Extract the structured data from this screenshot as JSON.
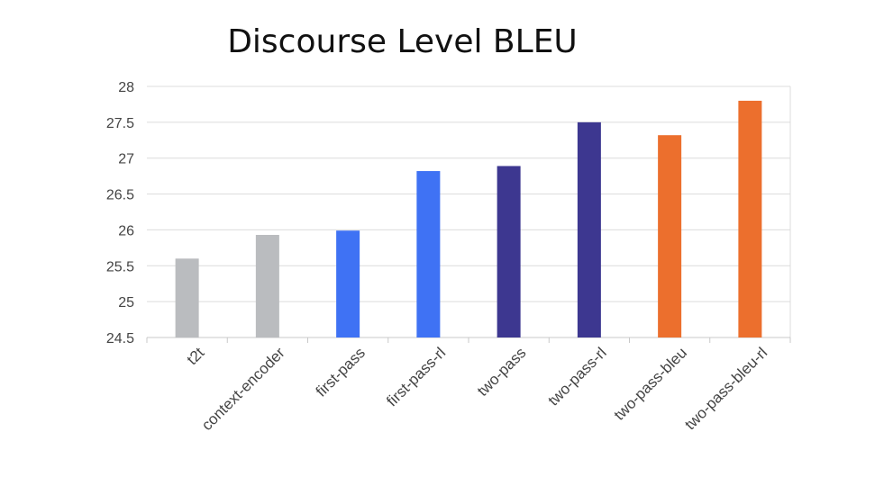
{
  "chart_data": {
    "type": "bar",
    "title": "Discourse Level BLEU",
    "xlabel": "",
    "ylabel": "",
    "categories": [
      "t2t",
      "context-encoder",
      "first-pass",
      "first-pass-rl",
      "two-pass",
      "two-pass-rl",
      "two-pass-bleu",
      "two-pass-bleu-rl"
    ],
    "values": [
      25.6,
      25.93,
      25.99,
      26.82,
      26.89,
      27.5,
      27.32,
      27.8
    ],
    "colors": [
      "#babcbf",
      "#babcbf",
      "#3f72f4",
      "#3f72f4",
      "#3d3790",
      "#3d3790",
      "#ec6f2d",
      "#ec6f2d"
    ],
    "ylim": [
      24.5,
      28
    ],
    "yticks": [
      "24.5",
      "25",
      "25.5",
      "26",
      "26.5",
      "27",
      "27.5",
      "28"
    ],
    "grid": true,
    "legend": "none"
  }
}
